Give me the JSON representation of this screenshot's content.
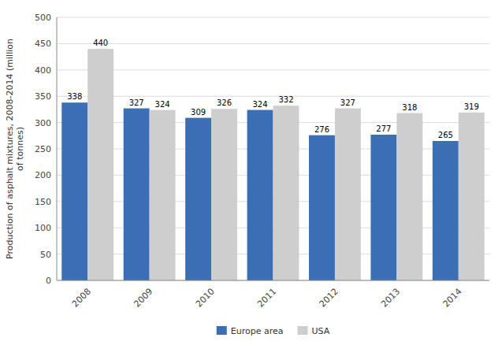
{
  "chart_data": {
    "type": "bar",
    "categories": [
      "2008",
      "2009",
      "2010",
      "2011",
      "2012",
      "2013",
      "2014"
    ],
    "series": [
      {
        "name": "Europe area",
        "color": "#3B6FB5",
        "values": [
          338,
          327,
          309,
          324,
          276,
          277,
          265
        ]
      },
      {
        "name": "USA",
        "color": "#CECECE",
        "values": [
          440,
          324,
          326,
          332,
          327,
          318,
          319
        ]
      }
    ],
    "ylabel": "Production of asphalt mixtures, 2008-2014 (million\nof tonnes)",
    "ylim": [
      0,
      500
    ],
    "yticks": [
      0,
      50,
      100,
      150,
      200,
      250,
      300,
      350,
      400,
      450,
      500
    ],
    "grid": true,
    "data_labels": true,
    "legend": "bottom"
  }
}
